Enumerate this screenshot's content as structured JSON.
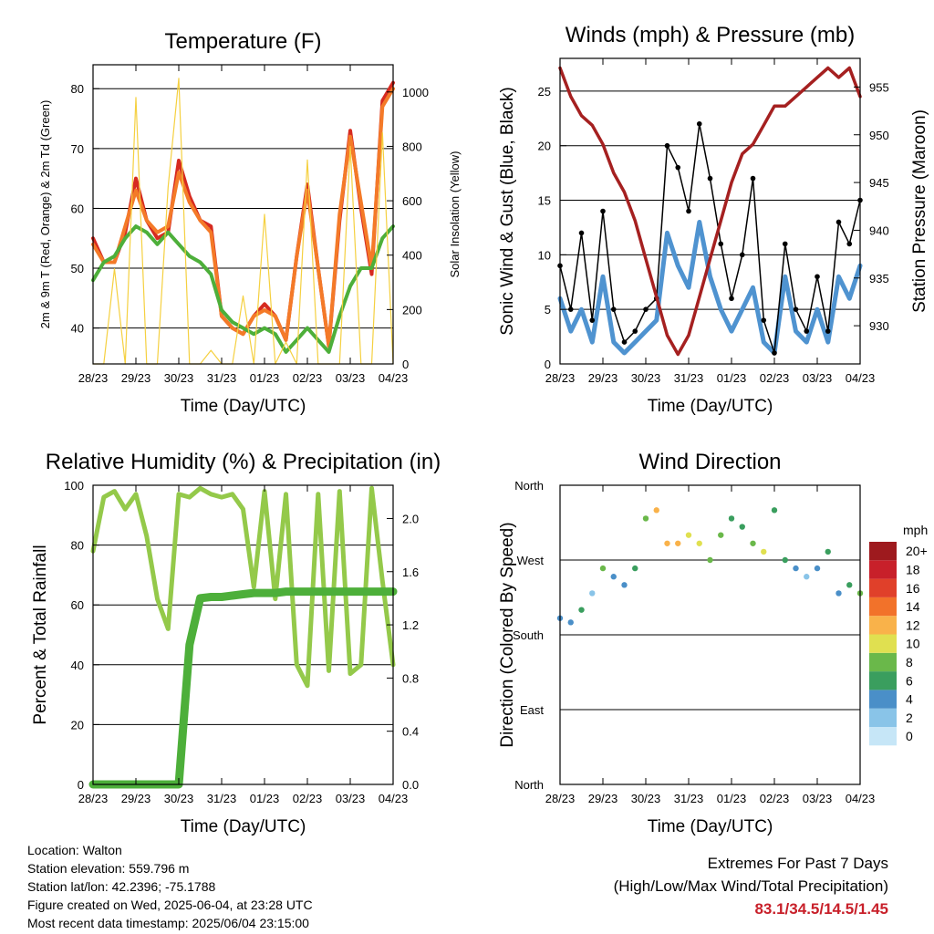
{
  "x_ticks": [
    "28/23",
    "29/23",
    "30/23",
    "31/23",
    "01/23",
    "02/23",
    "03/23",
    "04/23"
  ],
  "info": {
    "location": "Location: Walton",
    "elevation": "Station elevation: 559.796 m",
    "latlon": "Station lat/lon: 42.2396; -75.1788",
    "created": "Figure created on Wed, 2025-06-04, at 23:28 UTC",
    "recent": "Most recent data timestamp: 2025/06/04 23:15:00"
  },
  "extremes": {
    "title": "Extremes For Past 7 Days",
    "subtitle": "(High/Low/Max Wind/Total Precipitation)",
    "values": "83.1/34.5/14.5/1.45"
  },
  "chart_data": [
    {
      "type": "line",
      "title": "Temperature (F)",
      "xlabel": "Time (Day/UTC)",
      "ylabel": "2m & 9m T (Red, Orange) & 2m Td (Green)",
      "ylabel_right": "Solar Insolation (Yellow)",
      "x": [
        0,
        0.25,
        0.5,
        0.75,
        1,
        1.25,
        1.5,
        1.75,
        2,
        2.25,
        2.5,
        2.75,
        3,
        3.25,
        3.5,
        3.75,
        4,
        4.25,
        4.5,
        4.75,
        5,
        5.25,
        5.5,
        5.75,
        6,
        6.25,
        6.5,
        6.75,
        7
      ],
      "ylim": [
        34,
        84
      ],
      "yticks": [
        40,
        50,
        60,
        70,
        80
      ],
      "y2lim": [
        0,
        1100
      ],
      "y2ticks": [
        0,
        200,
        400,
        600,
        800,
        1000
      ],
      "series": [
        {
          "name": "2m T",
          "color": "#d62a20",
          "axis": "left",
          "values": [
            55,
            51,
            51,
            56,
            65,
            58,
            55,
            56,
            68,
            62,
            58,
            57,
            42,
            40,
            39,
            42,
            44,
            42,
            38,
            52,
            64,
            50,
            37,
            58,
            73,
            60,
            49,
            78,
            81
          ]
        },
        {
          "name": "9m T",
          "color": "#f47a28",
          "axis": "left",
          "values": [
            54,
            51,
            51,
            57,
            63,
            58,
            56,
            57,
            66,
            61,
            58,
            56,
            42,
            40,
            39,
            42,
            43,
            42,
            38,
            52,
            63,
            50,
            37,
            59,
            72,
            61,
            50,
            77,
            80
          ]
        },
        {
          "name": "2m Td",
          "color": "#4daf3a",
          "axis": "left",
          "values": [
            48,
            51,
            52,
            55,
            57,
            56,
            54,
            56,
            54,
            52,
            51,
            49,
            43,
            41,
            40,
            39,
            40,
            39,
            36,
            38,
            40,
            38,
            36,
            42,
            47,
            50,
            50,
            55,
            57
          ]
        },
        {
          "name": "Solar Insolation",
          "color": "#f5d040",
          "axis": "right",
          "values": [
            0,
            0,
            350,
            0,
            980,
            0,
            0,
            650,
            1050,
            0,
            0,
            50,
            0,
            0,
            250,
            0,
            550,
            0,
            80,
            0,
            750,
            0,
            0,
            0,
            800,
            0,
            0,
            850,
            0
          ]
        }
      ]
    },
    {
      "type": "line",
      "title": "Winds (mph) & Pressure (mb)",
      "xlabel": "Time (Day/UTC)",
      "ylabel": "Sonic Wind & Gust (Blue, Black)",
      "ylabel_right": "Station Pressure (Maroon)",
      "x": [
        0,
        0.25,
        0.5,
        0.75,
        1,
        1.25,
        1.5,
        1.75,
        2,
        2.25,
        2.5,
        2.75,
        3,
        3.25,
        3.5,
        3.75,
        4,
        4.25,
        4.5,
        4.75,
        5,
        5.25,
        5.5,
        5.75,
        6,
        6.25,
        6.5,
        6.75,
        7
      ],
      "ylim": [
        0,
        28
      ],
      "yticks": [
        0,
        5,
        10,
        15,
        20,
        25
      ],
      "y2lim": [
        926,
        958
      ],
      "y2ticks": [
        930,
        935,
        940,
        945,
        950,
        955
      ],
      "series": [
        {
          "name": "Sonic Wind",
          "color": "#4f93d0",
          "axis": "left",
          "values": [
            6,
            3,
            5,
            2,
            8,
            2,
            1,
            2,
            3,
            4,
            12,
            9,
            7,
            13,
            8,
            5,
            3,
            5,
            7,
            2,
            1,
            8,
            3,
            2,
            5,
            2,
            8,
            6,
            9
          ]
        },
        {
          "name": "Gust",
          "color": "#000000",
          "axis": "left",
          "values": [
            9,
            5,
            12,
            4,
            14,
            5,
            2,
            3,
            5,
            6,
            20,
            18,
            14,
            22,
            17,
            11,
            6,
            10,
            17,
            4,
            1,
            11,
            5,
            3,
            8,
            3,
            13,
            11,
            15
          ]
        },
        {
          "name": "Station Pressure",
          "color": "#a52020",
          "axis": "right",
          "values": [
            957,
            954,
            952,
            951,
            949,
            946,
            944,
            941,
            937,
            933,
            929,
            927,
            929,
            933,
            937,
            941,
            945,
            948,
            949,
            951,
            953,
            953,
            954,
            955,
            956,
            957,
            956,
            957,
            954
          ]
        }
      ]
    },
    {
      "type": "line",
      "title": "Relative Humidity (%) & Precipitation (in)",
      "xlabel": "Time (Day/UTC)",
      "ylabel": "Percent & Total Rainfall",
      "x": [
        0,
        0.25,
        0.5,
        0.75,
        1,
        1.25,
        1.5,
        1.75,
        2,
        2.25,
        2.5,
        2.75,
        3,
        3.25,
        3.5,
        3.75,
        4,
        4.25,
        4.5,
        4.75,
        5,
        5.25,
        5.5,
        5.75,
        6,
        6.25,
        6.5,
        6.75,
        7
      ],
      "ylim": [
        0,
        100
      ],
      "yticks": [
        0,
        20,
        40,
        60,
        80,
        100
      ],
      "y2lim": [
        0,
        2.25
      ],
      "y2ticks": [
        0.0,
        0.4,
        0.8,
        1.2,
        1.6,
        2.0
      ],
      "series": [
        {
          "name": "RH",
          "color": "#94c94a",
          "axis": "left",
          "values": [
            78,
            96,
            98,
            92,
            97,
            83,
            62,
            52,
            97,
            96,
            99,
            97,
            96,
            97,
            92,
            66,
            98,
            62,
            97,
            40,
            33,
            97,
            38,
            98,
            37,
            40,
            99,
            68,
            40
          ]
        },
        {
          "name": "Precipitation",
          "color": "#4daf3a",
          "axis": "right",
          "values": [
            0,
            0,
            0,
            0,
            0,
            0,
            0,
            0,
            0,
            1.05,
            1.4,
            1.41,
            1.41,
            1.42,
            1.43,
            1.44,
            1.44,
            1.44,
            1.45,
            1.45,
            1.45,
            1.45,
            1.45,
            1.45,
            1.45,
            1.45,
            1.45,
            1.45,
            1.45
          ]
        }
      ]
    },
    {
      "type": "scatter",
      "title": "Wind Direction",
      "xlabel": "Time (Day/UTC)",
      "ylabel": "Direction (Colored By Speed)",
      "yticks": [
        "North",
        "East",
        "South",
        "West",
        "North"
      ],
      "ylim": [
        0,
        360
      ],
      "x": [
        0,
        0.25,
        0.5,
        0.75,
        1,
        1.25,
        1.5,
        1.75,
        2,
        2.25,
        2.5,
        2.75,
        3,
        3.25,
        3.5,
        3.75,
        4,
        4.25,
        4.5,
        4.75,
        5,
        5.25,
        5.5,
        5.75,
        6,
        6.25,
        6.5,
        6.75,
        7
      ],
      "direction": [
        200,
        195,
        210,
        230,
        260,
        250,
        240,
        260,
        320,
        330,
        290,
        290,
        300,
        290,
        270,
        300,
        320,
        310,
        290,
        280,
        330,
        270,
        260,
        250,
        260,
        280,
        230,
        240,
        230
      ],
      "speed": [
        5,
        4,
        6,
        3,
        8,
        5,
        4,
        6,
        8,
        12,
        13,
        12,
        11,
        10,
        9,
        8,
        6,
        7,
        9,
        10,
        7,
        6,
        4,
        3,
        5,
        6,
        5,
        7,
        8
      ],
      "colorbar": {
        "label": "mph",
        "levels": [
          "0",
          "2",
          "4",
          "6",
          "8",
          "10",
          "12",
          "14",
          "16",
          "18",
          "20+"
        ],
        "colors": [
          "#c6e6f7",
          "#89c4e8",
          "#4a8fc8",
          "#3a9e5e",
          "#6ab84a",
          "#e0e050",
          "#f9b24a",
          "#f2722a",
          "#e0402a",
          "#c8202a",
          "#9e1a1e"
        ]
      }
    }
  ]
}
